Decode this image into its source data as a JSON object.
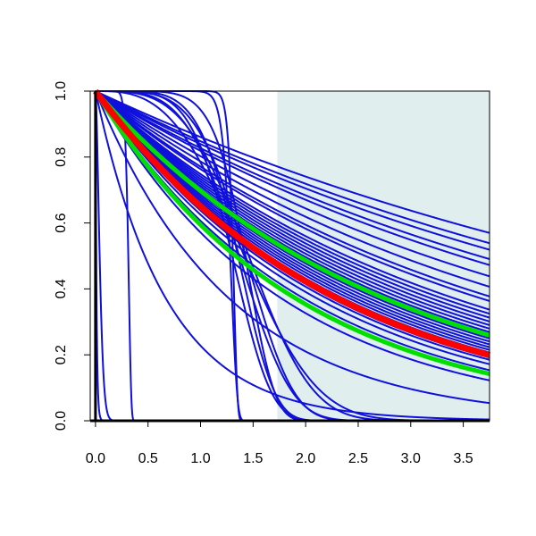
{
  "chart_data": {
    "type": "line",
    "title": "",
    "xlabel": "",
    "ylabel": "",
    "xlim": [
      -0.05,
      3.75
    ],
    "ylim": [
      0.0,
      1.0
    ],
    "x_ticks": [
      0.0,
      0.5,
      1.0,
      1.5,
      2.0,
      2.5,
      3.0,
      3.5
    ],
    "x_tick_labels": [
      "0.0",
      "0.5",
      "1.0",
      "1.5",
      "2.0",
      "2.5",
      "3.0",
      "3.5"
    ],
    "y_ticks": [
      0.0,
      0.2,
      0.4,
      0.6,
      0.8,
      1.0
    ],
    "y_tick_labels": [
      "0.0",
      "0.2",
      "0.4",
      "0.6",
      "0.8",
      "1.0"
    ],
    "shaded_region": {
      "x_from": 1.73,
      "x_to": 3.75,
      "color": "#e0eeee"
    },
    "grid": false,
    "legend": "none",
    "colors": {
      "samples": "#1010dd",
      "reference": "#ff0000",
      "bounds": "#00e000",
      "axis": "#000000"
    },
    "series": [
      {
        "group": "samples",
        "curves": [
          {
            "kind": "exp",
            "rate": 0.15
          },
          {
            "kind": "exp",
            "rate": 0.165
          },
          {
            "kind": "exp",
            "rate": 0.175
          },
          {
            "kind": "exp",
            "rate": 0.19
          },
          {
            "kind": "exp",
            "rate": 0.2
          },
          {
            "kind": "exp",
            "rate": 0.22
          },
          {
            "kind": "exp",
            "rate": 0.24
          },
          {
            "kind": "exp",
            "rate": 0.26
          },
          {
            "kind": "exp",
            "rate": 0.27
          },
          {
            "kind": "exp",
            "rate": 0.29
          },
          {
            "kind": "exp",
            "rate": 0.3
          },
          {
            "kind": "exp",
            "rate": 0.31
          },
          {
            "kind": "exp",
            "rate": 0.32
          },
          {
            "kind": "exp",
            "rate": 0.33
          },
          {
            "kind": "exp",
            "rate": 0.34
          },
          {
            "kind": "exp",
            "rate": 0.35
          },
          {
            "kind": "exp",
            "rate": 0.36
          },
          {
            "kind": "exp",
            "rate": 0.37
          },
          {
            "kind": "exp",
            "rate": 0.38
          },
          {
            "kind": "exp",
            "rate": 0.39
          },
          {
            "kind": "exp",
            "rate": 0.4
          },
          {
            "kind": "exp",
            "rate": 0.41
          },
          {
            "kind": "exp",
            "rate": 0.42
          },
          {
            "kind": "exp",
            "rate": 0.44
          },
          {
            "kind": "exp",
            "rate": 0.45
          },
          {
            "kind": "exp",
            "rate": 0.47
          },
          {
            "kind": "exp",
            "rate": 0.5
          },
          {
            "kind": "exp",
            "rate": 0.56
          },
          {
            "kind": "exp",
            "rate": 0.78
          },
          {
            "kind": "exp",
            "rate": 1.48
          },
          {
            "kind": "weibull",
            "scale": 1.6,
            "shape": 3.0
          },
          {
            "kind": "weibull",
            "scale": 1.62,
            "shape": 3.5
          },
          {
            "kind": "weibull",
            "scale": 1.5,
            "shape": 4.0
          },
          {
            "kind": "weibull",
            "scale": 1.55,
            "shape": 4.5
          },
          {
            "kind": "weibull",
            "scale": 1.45,
            "shape": 5.5
          },
          {
            "kind": "weibull",
            "scale": 1.5,
            "shape": 7.0
          },
          {
            "kind": "weibull",
            "scale": 1.4,
            "shape": 5.0
          },
          {
            "kind": "weibull",
            "scale": 1.32,
            "shape": 40.0
          },
          {
            "kind": "weibull",
            "scale": 1.3,
            "shape": 25.0
          },
          {
            "kind": "weibull",
            "scale": 0.32,
            "shape": 15.0
          },
          {
            "kind": "weibull",
            "scale": 0.05,
            "shape": 1.6
          },
          {
            "kind": "weibull",
            "scale": 0.01,
            "shape": 1.0
          }
        ]
      },
      {
        "group": "bounds",
        "curves": [
          {
            "kind": "exp",
            "rate": 0.36
          },
          {
            "kind": "exp",
            "rate": 0.52
          }
        ]
      },
      {
        "group": "reference",
        "curves": [
          {
            "kind": "exp",
            "rate": 0.43
          }
        ]
      }
    ]
  }
}
